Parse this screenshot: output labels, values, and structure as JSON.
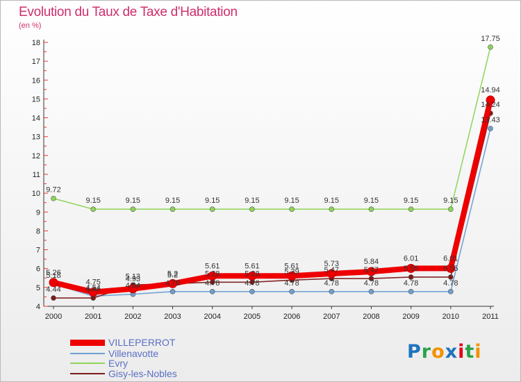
{
  "chart_data": {
    "type": "line",
    "title": "Evolution du Taux de Taxe d'Habitation",
    "subtitle": "(en %)",
    "xlabel": "",
    "ylabel": "(en %)",
    "ylim": [
      4,
      18
    ],
    "yticks": [
      "4",
      "5",
      "6",
      "7",
      "8",
      "9",
      "10",
      "11",
      "12",
      "13",
      "14",
      "15",
      "16",
      "17",
      "18"
    ],
    "categories": [
      "2000",
      "2001",
      "2002",
      "2003",
      "2004",
      "2005",
      "2006",
      "2007",
      "2008",
      "2009",
      "2010",
      "2011"
    ],
    "grid": false,
    "legend_position": "bottom-left",
    "series": [
      {
        "name": "VILLEPERROT",
        "color": "#ee0000",
        "values": [
          5.26,
          4.75,
          4.93,
          5.2,
          5.61,
          5.61,
          5.61,
          5.73,
          5.84,
          6.01,
          6.01,
          14.94
        ],
        "labels": [
          "5.26",
          "4.75",
          "4.93",
          "5.2",
          "5.61",
          "5.61",
          "5.61",
          "5.73",
          "5.84",
          "6.01",
          "6.01",
          "14.94"
        ]
      },
      {
        "name": "Villenavotte",
        "color": "#6f9fd2",
        "values": [
          5.18,
          4.54,
          4.64,
          4.78,
          4.78,
          4.78,
          4.78,
          4.78,
          4.78,
          4.78,
          4.78,
          13.43
        ],
        "labels": [
          "5.18",
          "4.54",
          "4.64",
          "4.78",
          "4.78",
          "4.78",
          "4.78",
          "4.78",
          "4.78",
          "4.78",
          "4.78",
          "13.43"
        ]
      },
      {
        "name": "Evry",
        "color": "#8fd45a",
        "values": [
          9.72,
          9.15,
          9.15,
          9.15,
          9.15,
          9.15,
          9.15,
          9.15,
          9.15,
          9.15,
          9.15,
          17.75
        ],
        "labels": [
          "9.72",
          "9.15",
          "9.15",
          "9.15",
          "9.15",
          "9.15",
          "9.15",
          "9.15",
          "9.15",
          "9.15",
          "9.15",
          "17.75"
        ]
      },
      {
        "name": "Gisy-les-Nobles",
        "color": "#7b1a1a",
        "values": [
          4.44,
          4.44,
          5.13,
          5.2,
          5.28,
          5.28,
          5.39,
          5.47,
          5.47,
          5.55,
          5.55,
          14.24
        ],
        "labels": [
          "4.44",
          "4.44",
          "5.13",
          "5.2",
          "5.28",
          "5.28",
          "5.39",
          "5.47",
          "5.47",
          "5.55",
          "5.55",
          "14.24"
        ]
      }
    ]
  },
  "logo": {
    "letters": [
      "P",
      "r",
      "o",
      "x",
      "i",
      "t",
      "i"
    ],
    "colors": [
      "#1e73be",
      "#2ba34a",
      "#f29100",
      "#1e73be",
      "#e2001a",
      "#2ba34a",
      "#f29100"
    ]
  }
}
